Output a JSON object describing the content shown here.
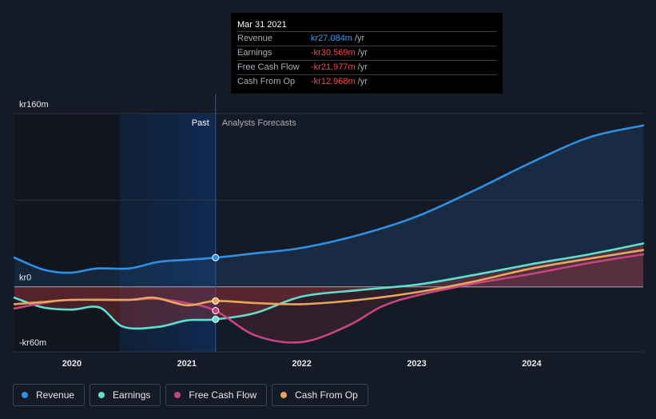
{
  "tooltip": {
    "date": "Mar 31 2021",
    "rows": [
      {
        "label": "Revenue",
        "value": "kr27.084m",
        "unit": "/yr",
        "color": "#3d9be9"
      },
      {
        "label": "Earnings",
        "value": "-kr30.569m",
        "unit": "/yr",
        "color": "#ef4b4b"
      },
      {
        "label": "Free Cash Flow",
        "value": "-kr21.977m",
        "unit": "/yr",
        "color": "#ef4b4b"
      },
      {
        "label": "Cash From Op",
        "value": "-kr12.968m",
        "unit": "/yr",
        "color": "#ef4b4b"
      }
    ]
  },
  "legend": [
    {
      "label": "Revenue",
      "color": "#2f8fe2"
    },
    {
      "label": "Earnings",
      "color": "#5fe0cf"
    },
    {
      "label": "Free Cash Flow",
      "color": "#c7457f"
    },
    {
      "label": "Cash From Op",
      "color": "#e8a65a"
    }
  ],
  "chart_data": {
    "type": "line",
    "y_tick_labels": [
      "kr160m",
      "kr0",
      "-kr60m"
    ],
    "ylim": [
      -60,
      160
    ],
    "x_tick_labels": [
      "2020",
      "2021",
      "2022",
      "2023",
      "2024"
    ],
    "xlim": [
      2019.5,
      2024.97
    ],
    "past_label": "Past",
    "forecast_label": "Analysts Forecasts",
    "divider_x": 2021.25,
    "series": [
      {
        "name": "Revenue",
        "color": "#2f8fe2",
        "points": [
          [
            2019.5,
            27
          ],
          [
            2019.75,
            16
          ],
          [
            2019.98,
            13
          ],
          [
            2020.22,
            17
          ],
          [
            2020.5,
            17
          ],
          [
            2020.75,
            23
          ],
          [
            2021.0,
            25
          ],
          [
            2021.25,
            27
          ],
          [
            2021.6,
            31
          ],
          [
            2022.0,
            36
          ],
          [
            2022.5,
            48
          ],
          [
            2023.0,
            65
          ],
          [
            2023.5,
            89
          ],
          [
            2024.0,
            115
          ],
          [
            2024.5,
            138
          ],
          [
            2024.97,
            149
          ]
        ]
      },
      {
        "name": "Earnings",
        "color": "#5fe0cf",
        "points": [
          [
            2019.5,
            -10
          ],
          [
            2019.75,
            -19
          ],
          [
            2020.0,
            -21
          ],
          [
            2020.24,
            -19
          ],
          [
            2020.45,
            -37
          ],
          [
            2020.75,
            -37
          ],
          [
            2021.0,
            -31
          ],
          [
            2021.25,
            -30
          ],
          [
            2021.6,
            -24
          ],
          [
            2022.0,
            -9
          ],
          [
            2022.5,
            -3
          ],
          [
            2023.0,
            2
          ],
          [
            2023.5,
            11
          ],
          [
            2024.0,
            21
          ],
          [
            2024.5,
            30
          ],
          [
            2024.97,
            40
          ]
        ]
      },
      {
        "name": "Free Cash Flow",
        "color": "#c7457f",
        "points": [
          [
            2019.5,
            -20
          ],
          [
            2019.75,
            -15
          ],
          [
            2020.0,
            -12
          ],
          [
            2020.5,
            -12
          ],
          [
            2020.72,
            -11
          ],
          [
            2021.0,
            -15
          ],
          [
            2021.25,
            -22
          ],
          [
            2021.6,
            -45
          ],
          [
            2022.0,
            -51
          ],
          [
            2022.4,
            -36
          ],
          [
            2022.7,
            -18
          ],
          [
            2023.0,
            -8
          ],
          [
            2023.5,
            3
          ],
          [
            2024.0,
            12
          ],
          [
            2024.5,
            22
          ],
          [
            2024.97,
            30
          ]
        ]
      },
      {
        "name": "Cash From Op",
        "color": "#e8a65a",
        "points": [
          [
            2019.5,
            -16
          ],
          [
            2019.75,
            -14
          ],
          [
            2020.0,
            -12
          ],
          [
            2020.5,
            -12
          ],
          [
            2020.72,
            -10
          ],
          [
            2021.0,
            -17
          ],
          [
            2021.25,
            -13
          ],
          [
            2021.6,
            -15
          ],
          [
            2022.0,
            -16
          ],
          [
            2022.5,
            -12
          ],
          [
            2023.0,
            -5
          ],
          [
            2023.5,
            5
          ],
          [
            2024.0,
            17
          ],
          [
            2024.5,
            26
          ],
          [
            2024.97,
            34
          ]
        ]
      }
    ]
  }
}
